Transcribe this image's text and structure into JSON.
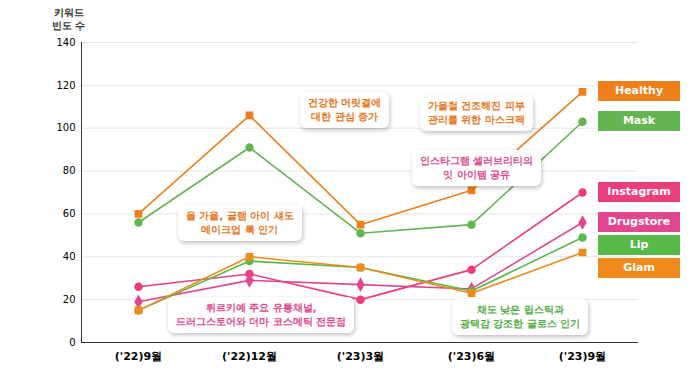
{
  "chart_data": {
    "type": "line",
    "y_label": "키워드\n빈도 수",
    "categories": [
      "('22)9월",
      "('22)12월",
      "('23)3월",
      "('23)6월",
      "('23)9월"
    ],
    "ylim": [
      0,
      140
    ],
    "yticks": [
      0,
      20,
      40,
      60,
      80,
      100,
      120,
      140
    ],
    "grid": true,
    "legend": "right",
    "series": [
      {
        "name": "Healthy",
        "color": "#ef7f1a",
        "marker": "square",
        "values": [
          60,
          106,
          55,
          71,
          117
        ]
      },
      {
        "name": "Mask",
        "color": "#63b552",
        "marker": "circle",
        "values": [
          56,
          91,
          51,
          55,
          103
        ]
      },
      {
        "name": "Instagram",
        "color": "#ec3e7c",
        "marker": "circle",
        "values": [
          26,
          32,
          20,
          34,
          70
        ]
      },
      {
        "name": "Drugstore",
        "color": "#e0478f",
        "marker": "diamond",
        "values": [
          19,
          29,
          27,
          25,
          56
        ]
      },
      {
        "name": "Lip",
        "color": "#56b948",
        "marker": "circle",
        "values": [
          15,
          38,
          35,
          24,
          49
        ]
      },
      {
        "name": "Glam",
        "color": "#f08a1c",
        "marker": "square",
        "values": [
          15,
          40,
          35,
          23,
          42
        ]
      }
    ],
    "annotations": [
      {
        "text": "건강한 머릿결에\n대한 관심 증가",
        "color": "#e8761a"
      },
      {
        "text": "올 가을, 글램 아이 섀도\n메이크업 룩 인기",
        "color": "#e8761a"
      },
      {
        "text": "튀르키예 주요 유통채널,\n드러그스토어와 더마 코스메틱 전문점",
        "color": "#e0478f"
      },
      {
        "text": "가을철 건조해진 피부\n관리를 위한 마스크팩",
        "color": "#e8761a"
      },
      {
        "text": "인스타그램 셀러브리티의\n잇 아이템 공유",
        "color": "#e0478f"
      },
      {
        "text": "채도 낮은 립스틱과\n광택감 강조한 글로스 인기",
        "color": "#4fae3f"
      }
    ]
  }
}
